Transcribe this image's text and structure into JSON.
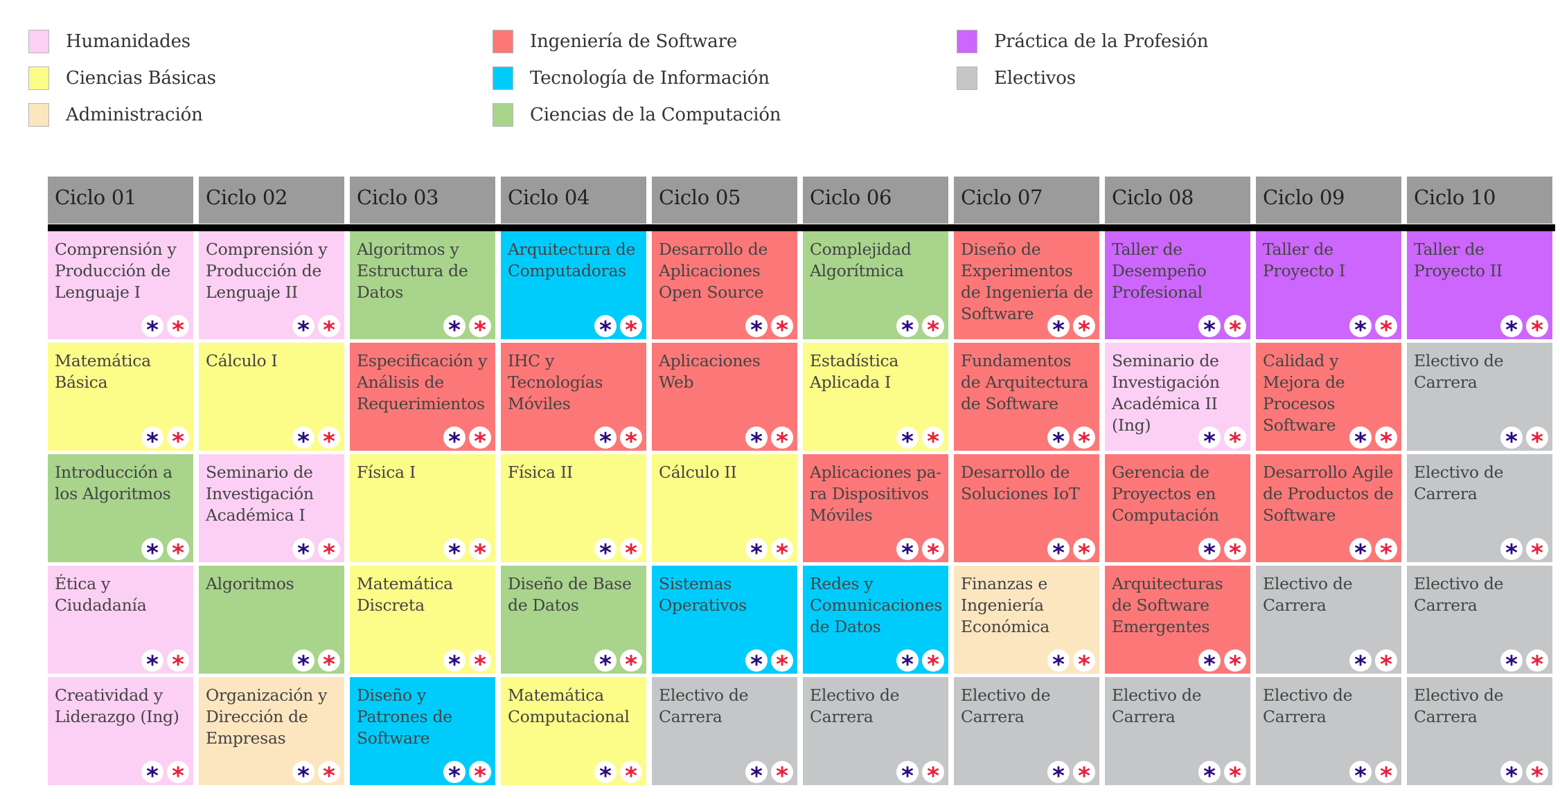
{
  "legend": [
    {
      "label": "Humanidades",
      "color": "#fcd0f4"
    },
    {
      "label": "Ciencias Básicas",
      "color": "#fcfc88"
    },
    {
      "label": "Administración",
      "color": "#fce6c0"
    },
    {
      "label": "Ingeniería de Software",
      "color": "#fc7878"
    },
    {
      "label": "Tecnología de Información",
      "color": "#00ccfc"
    },
    {
      "label": "Ciencias de la Computación",
      "color": "#a8d48c"
    },
    {
      "label": "Práctica de la Profesión",
      "color": "#cc66fc"
    },
    {
      "label": "Electivos",
      "color": "#c4c6c8"
    }
  ],
  "badges": {
    "symbol": "*",
    "first_color": "#2a0a80",
    "second_color": "#e8203a"
  },
  "cycles": [
    {
      "title": "Ciclo 01",
      "courses": [
        {
          "name": "Comprensión y Producción de Lenguaje I",
          "area": "Humanidades"
        },
        {
          "name": "Matemática Básica",
          "area": "Ciencias Básicas"
        },
        {
          "name": "Introducción a los Algoritmos",
          "area": "Ciencias de la Computación"
        },
        {
          "name": "Ética y Ciudadanía",
          "area": "Humanidades"
        },
        {
          "name": "Creatividad y Liderazgo (Ing)",
          "area": "Humanidades"
        }
      ]
    },
    {
      "title": "Ciclo 02",
      "courses": [
        {
          "name": "Comprensión y Producción de Lenguaje II",
          "area": "Humanidades"
        },
        {
          "name": "Cálculo I",
          "area": "Ciencias Básicas"
        },
        {
          "name": "Seminario de Investigación Académica I",
          "area": "Humanidades"
        },
        {
          "name": "Algoritmos",
          "area": "Ciencias de la Computación"
        },
        {
          "name": "Organización y Dirección de Empresas",
          "area": "Administración"
        }
      ]
    },
    {
      "title": "Ciclo 03",
      "courses": [
        {
          "name": "Algoritmos y Estructura de Datos",
          "area": "Ciencias de la Computación"
        },
        {
          "name": "Especificación y Análisis de Requerimientos",
          "area": "Ingeniería de Software"
        },
        {
          "name": "Física I",
          "area": "Ciencias Básicas"
        },
        {
          "name": "Matemática Discreta",
          "area": "Ciencias Básicas"
        },
        {
          "name": "Diseño y Patrones de Software",
          "area": "Tecnología de Información"
        }
      ]
    },
    {
      "title": "Ciclo 04",
      "courses": [
        {
          "name": "Arquitectura de Computadoras",
          "area": "Tecnología de Información"
        },
        {
          "name": "IHC y Tecnologías Móviles",
          "area": "Ingeniería de Software"
        },
        {
          "name": "Física II",
          "area": "Ciencias Básicas"
        },
        {
          "name": "Diseño de Base de Datos",
          "area": "Ciencias de la Computación"
        },
        {
          "name": "Matemática Computacional",
          "area": "Ciencias Básicas"
        }
      ]
    },
    {
      "title": "Ciclo 05",
      "courses": [
        {
          "name": "Desarrollo de Aplicaciones Open Source",
          "area": "Ingeniería de Software"
        },
        {
          "name": "Aplicaciones Web",
          "area": "Ingeniería de Software"
        },
        {
          "name": "Cálculo II",
          "area": "Ciencias Básicas"
        },
        {
          "name": "Sistemas Operativos",
          "area": "Tecnología de Información"
        },
        {
          "name": "Electivo de Carrera",
          "area": "Electivos"
        }
      ]
    },
    {
      "title": "Ciclo 06",
      "courses": [
        {
          "name": "Complejidad Algorítmica",
          "area": "Ciencias de la Computación"
        },
        {
          "name": "Estadística Aplicada I",
          "area": "Ciencias Básicas"
        },
        {
          "name": "Aplicaciones pa-ra Dispositivos Móviles",
          "area": "Ingeniería de Software"
        },
        {
          "name": "Redes y Comunicaciones de Datos",
          "area": "Tecnología de Información"
        },
        {
          "name": "Electivo de Carrera",
          "area": "Electivos"
        }
      ]
    },
    {
      "title": "Ciclo 07",
      "courses": [
        {
          "name": "Diseño de Experimentos de Ingeniería de Software",
          "area": "Ingeniería de Software"
        },
        {
          "name": "Fundamentos de Arquitectura de Software",
          "area": "Ingeniería de Software"
        },
        {
          "name": "Desarrollo de Soluciones IoT",
          "area": "Ingeniería de Software"
        },
        {
          "name": "Finanzas e Ingeniería Económica",
          "area": "Administración"
        },
        {
          "name": "Electivo de Carrera",
          "area": "Electivos"
        }
      ]
    },
    {
      "title": "Ciclo 08",
      "courses": [
        {
          "name": "Taller de Desempeño Profesional",
          "area": "Práctica de la Profesión"
        },
        {
          "name": "Seminario de Investigación Académica II (Ing)",
          "area": "Humanidades"
        },
        {
          "name": "Gerencia de Proyectos en Computación",
          "area": "Ingeniería de Software"
        },
        {
          "name": "Arquitecturas de Software Emergentes",
          "area": "Ingeniería de Software"
        },
        {
          "name": "Electivo de Carrera",
          "area": "Electivos"
        }
      ]
    },
    {
      "title": "Ciclo 09",
      "courses": [
        {
          "name": "Taller de Proyecto I",
          "area": "Práctica de la Profesión"
        },
        {
          "name": "Calidad y Mejora de Procesos Software",
          "area": "Ingeniería de Software"
        },
        {
          "name": "Desarrollo Agile de Productos de Software",
          "area": "Ingeniería de Software"
        },
        {
          "name": "Electivo de Carrera",
          "area": "Electivos"
        },
        {
          "name": "Electivo de Carrera",
          "area": "Electivos"
        }
      ]
    },
    {
      "title": "Ciclo 10",
      "courses": [
        {
          "name": "Taller de Proyecto II",
          "area": "Práctica de la Profesión"
        },
        {
          "name": "Electivo de Carrera",
          "area": "Electivos"
        },
        {
          "name": "Electivo de Carrera",
          "area": "Electivos"
        },
        {
          "name": "Electivo de Carrera",
          "area": "Electivos"
        },
        {
          "name": "Electivo de Carrera",
          "area": "Electivos"
        }
      ]
    }
  ]
}
